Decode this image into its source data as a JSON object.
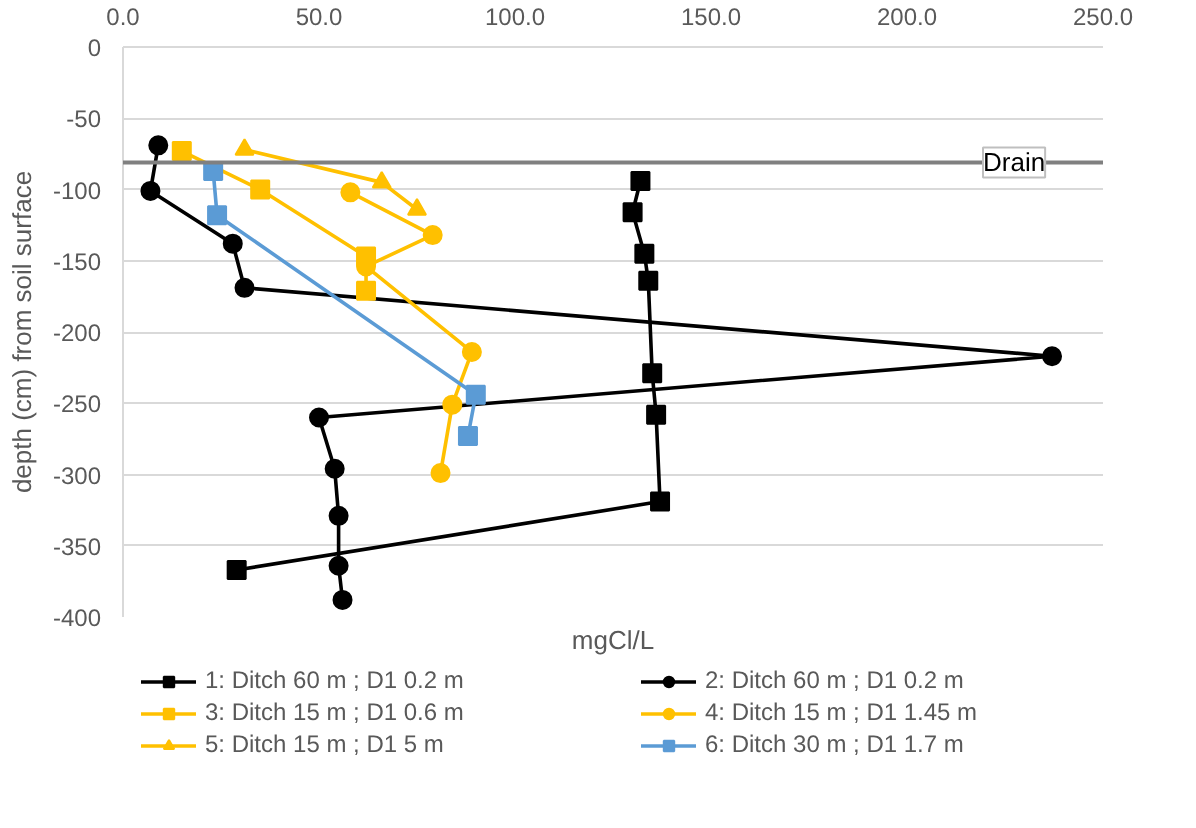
{
  "chart_data": {
    "type": "line",
    "xlabel": "mgCl/L",
    "ylabel": "depth (cm) from soil surface",
    "xlim": [
      0,
      250
    ],
    "xticks": [
      {
        "value": 0,
        "label": "0.0"
      },
      {
        "value": 50,
        "label": "50.0"
      },
      {
        "value": 100,
        "label": "100.0"
      },
      {
        "value": 150,
        "label": "150.0"
      },
      {
        "value": 200,
        "label": "200.0"
      },
      {
        "value": 250,
        "label": "250.0"
      }
    ],
    "ylim": [
      -400,
      0
    ],
    "yticks": [
      -400,
      -350,
      -300,
      -250,
      -200,
      -150,
      -100,
      -50,
      0
    ],
    "grid": "y",
    "legend": "bottom",
    "ref_lines": [
      {
        "axis": "y",
        "value": -81,
        "label": "Drain",
        "color": "#808080"
      }
    ],
    "series": [
      {
        "name": "1: Ditch 60 m ; D1 0.2 m",
        "color": "#000000",
        "marker": "square",
        "x": [
          132,
          130,
          133,
          134,
          135,
          136,
          137,
          29
        ],
        "values": [
          -94,
          -116,
          -145,
          -164,
          -229,
          -258,
          -319,
          -367
        ]
      },
      {
        "name": "2: Ditch 60 m ; D1 0.2 m",
        "color": "#000000",
        "marker": "circle",
        "x": [
          9,
          7,
          28,
          31,
          237,
          50,
          54,
          55,
          55,
          56
        ],
        "values": [
          -69,
          -101,
          -138,
          -169,
          -217,
          -260,
          -296,
          -329,
          -364,
          -388
        ]
      },
      {
        "name": "3: Ditch 15 m ; D1 0.6 m",
        "color": "#ffc000",
        "marker": "square",
        "x": [
          15,
          35,
          62,
          62
        ],
        "values": [
          -73,
          -100,
          -147,
          -171
        ]
      },
      {
        "name": "4: Ditch 15 m ; D1 1.45 m",
        "color": "#ffc000",
        "marker": "circle",
        "x": [
          58,
          79,
          62,
          89,
          84,
          81
        ],
        "values": [
          -102,
          -132,
          -154,
          -214,
          -251,
          -299
        ]
      },
      {
        "name": "5: Ditch 15 m ; D1 5 m",
        "color": "#ffc000",
        "marker": "triangle",
        "x": [
          31,
          66,
          75
        ],
        "values": [
          -72,
          -95,
          -114
        ]
      },
      {
        "name": "6: Ditch 30 m ; D1 1.7 m",
        "color": "#5b9bd5",
        "marker": "square",
        "x": [
          23,
          24,
          90,
          88
        ],
        "values": [
          -87,
          -118,
          -244,
          -273
        ]
      }
    ]
  }
}
